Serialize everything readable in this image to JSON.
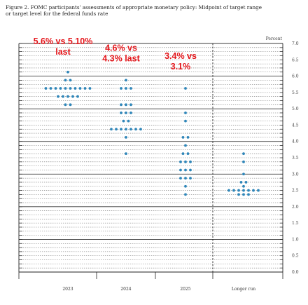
{
  "caption": {
    "line1": "Figure 2.  FOMC participants' assessments of appropriate monetary policy: Midpoint of target range",
    "line2": "or target level for the federal funds rate"
  },
  "chart_data": {
    "type": "scatter",
    "title": "Figure 2.  FOMC participants' assessments of appropriate monetary policy: Midpoint of target range or target level for the federal funds rate",
    "ylabel": "Percent",
    "ylim": [
      0,
      7.0
    ],
    "yticks": [
      "0.0",
      "0.5",
      "1.0",
      "1.5",
      "2.0",
      "2.5",
      "3.0",
      "3.5",
      "4.0",
      "4.5",
      "5.0",
      "5.5",
      "6.0",
      "6.5",
      "7.0"
    ],
    "categories": [
      "2023",
      "2024",
      "2025",
      "Longer run"
    ],
    "dot_color": "#2f86b9",
    "grid": "major lines at whole percents, dashed lines at 0.125 steps",
    "dots": [
      {
        "category": "2023",
        "y": 6.125,
        "count": 1
      },
      {
        "category": "2023",
        "y": 5.875,
        "count": 2
      },
      {
        "category": "2023",
        "y": 5.625,
        "count": 10
      },
      {
        "category": "2023",
        "y": 5.375,
        "count": 5
      },
      {
        "category": "2023",
        "y": 5.125,
        "count": 2
      },
      {
        "category": "2024",
        "y": 5.875,
        "count": 1
      },
      {
        "category": "2024",
        "y": 5.625,
        "count": 3
      },
      {
        "category": "2024",
        "y": 5.125,
        "count": 3
      },
      {
        "category": "2024",
        "y": 4.875,
        "count": 3
      },
      {
        "category": "2024",
        "y": 4.625,
        "count": 2
      },
      {
        "category": "2024",
        "y": 4.375,
        "count": 7
      },
      {
        "category": "2024",
        "y": 4.125,
        "count": 1
      },
      {
        "category": "2024",
        "y": 3.625,
        "count": 1
      },
      {
        "category": "2025",
        "y": 5.625,
        "count": 1
      },
      {
        "category": "2025",
        "y": 4.875,
        "count": 1
      },
      {
        "category": "2025",
        "y": 4.625,
        "count": 1
      },
      {
        "category": "2025",
        "y": 4.125,
        "count": 2
      },
      {
        "category": "2025",
        "y": 3.875,
        "count": 1
      },
      {
        "category": "2025",
        "y": 3.625,
        "count": 2
      },
      {
        "category": "2025",
        "y": 3.375,
        "count": 3
      },
      {
        "category": "2025",
        "y": 3.125,
        "count": 3
      },
      {
        "category": "2025",
        "y": 2.875,
        "count": 3
      },
      {
        "category": "2025",
        "y": 2.625,
        "count": 1
      },
      {
        "category": "2025",
        "y": 2.375,
        "count": 1
      },
      {
        "category": "Longer run",
        "y": 3.625,
        "count": 1
      },
      {
        "category": "Longer run",
        "y": 3.375,
        "count": 1
      },
      {
        "category": "Longer run",
        "y": 3.0,
        "count": 1
      },
      {
        "category": "Longer run",
        "y": 2.75,
        "count": 2
      },
      {
        "category": "Longer run",
        "y": 2.625,
        "count": 1
      },
      {
        "category": "Longer run",
        "y": 2.5,
        "count": 7
      },
      {
        "category": "Longer run",
        "y": 2.375,
        "count": 3
      }
    ],
    "annotations": [
      {
        "lines": [
          "5.6% vs 5.10%",
          "last"
        ],
        "category": "2023",
        "y": 7.0
      },
      {
        "lines": [
          "4.6% vs",
          "4.3% last"
        ],
        "category": "2024",
        "y": 6.8
      },
      {
        "lines": [
          "3.4% vs",
          "3.1%"
        ],
        "category": "2025",
        "y": 6.55
      }
    ],
    "annotation_color": "#e4161b"
  }
}
